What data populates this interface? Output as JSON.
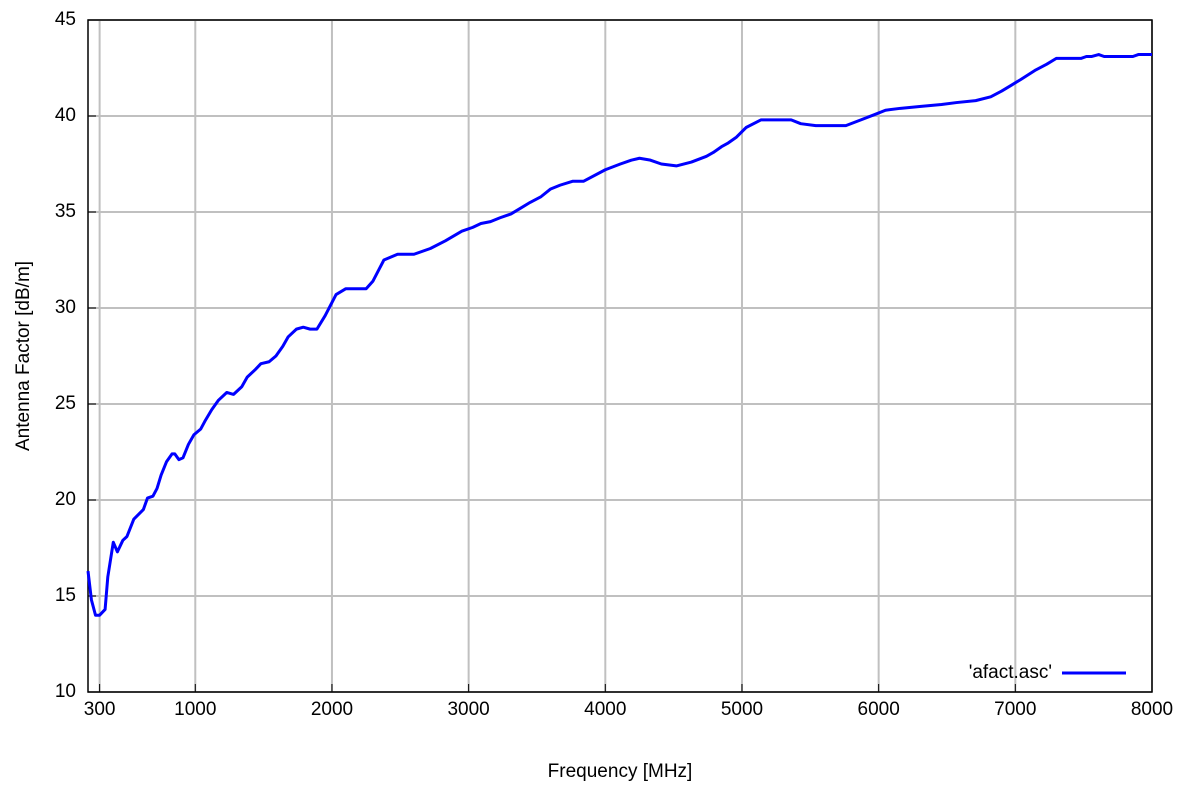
{
  "chart_data": {
    "type": "line",
    "xlabel": "Frequency [MHz]",
    "ylabel": "Antenna Factor [dB/m]",
    "xlim": [
      215,
      8000
    ],
    "ylim": [
      10,
      45
    ],
    "xticks": [
      300,
      1000,
      2000,
      3000,
      4000,
      5000,
      6000,
      7000,
      8000
    ],
    "yticks": [
      10,
      15,
      20,
      25,
      30,
      35,
      40,
      45
    ],
    "grid": true,
    "legend": "bottom-right",
    "series": [
      {
        "name": "'afact.asc'",
        "color": "#0000ff",
        "x": [
          215,
          240,
          270,
          300,
          340,
          360,
          400,
          430,
          470,
          500,
          550,
          620,
          650,
          690,
          720,
          750,
          790,
          830,
          850,
          880,
          910,
          950,
          990,
          1040,
          1070,
          1120,
          1170,
          1230,
          1280,
          1340,
          1380,
          1440,
          1480,
          1540,
          1590,
          1640,
          1680,
          1740,
          1790,
          1840,
          1890,
          1950,
          2030,
          2100,
          2250,
          2300,
          2380,
          2480,
          2600,
          2720,
          2830,
          2950,
          3030,
          3090,
          3160,
          3230,
          3310,
          3380,
          3450,
          3530,
          3600,
          3670,
          3760,
          3840,
          4000,
          4110,
          4190,
          4250,
          4330,
          4410,
          4520,
          4630,
          4740,
          4790,
          4850,
          4900,
          4960,
          5030,
          5140,
          5360,
          5430,
          5540,
          5760,
          5870,
          5980,
          6050,
          6160,
          6310,
          6460,
          6570,
          6710,
          6820,
          6900,
          6970,
          7040,
          7150,
          7230,
          7300,
          7480,
          7520,
          7560,
          7610,
          7650,
          7860,
          7900,
          8000
        ],
        "values": [
          16.3,
          14.8,
          14.0,
          14.0,
          14.3,
          16.0,
          17.8,
          17.3,
          17.9,
          18.1,
          19.0,
          19.5,
          20.1,
          20.2,
          20.6,
          21.3,
          22.0,
          22.4,
          22.4,
          22.1,
          22.2,
          22.9,
          23.4,
          23.7,
          24.1,
          24.7,
          25.2,
          25.6,
          25.5,
          25.9,
          26.4,
          26.8,
          27.1,
          27.2,
          27.5,
          28.0,
          28.5,
          28.9,
          29.0,
          28.9,
          28.9,
          29.6,
          30.7,
          31.0,
          31.0,
          31.4,
          32.5,
          32.8,
          32.8,
          33.1,
          33.5,
          34.0,
          34.2,
          34.4,
          34.5,
          34.7,
          34.9,
          35.2,
          35.5,
          35.8,
          36.2,
          36.4,
          36.6,
          36.6,
          37.2,
          37.5,
          37.7,
          37.8,
          37.7,
          37.5,
          37.4,
          37.6,
          37.9,
          38.1,
          38.4,
          38.6,
          38.9,
          39.4,
          39.8,
          39.8,
          39.6,
          39.5,
          39.5,
          39.8,
          40.1,
          40.3,
          40.4,
          40.5,
          40.6,
          40.7,
          40.8,
          41.0,
          41.3,
          41.6,
          41.9,
          42.4,
          42.7,
          43.0,
          43.0,
          43.1,
          43.1,
          43.2,
          43.1,
          43.1,
          43.2,
          43.2
        ]
      }
    ]
  }
}
